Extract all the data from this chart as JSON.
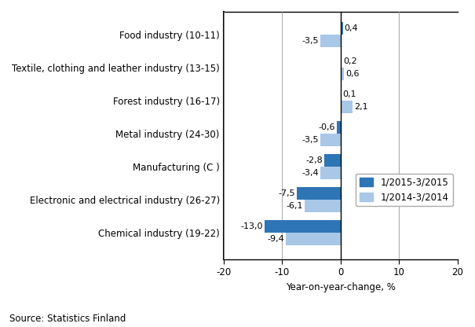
{
  "categories": [
    "Chemical industry (19-22)",
    "Electronic and electrical industry (26-27)",
    "Manufacturing (C )",
    "Metal industry (24-30)",
    "Forest industry (16-17)",
    "Textile, clothing and leather industry (13-15)",
    "Food industry (10-11)"
  ],
  "series": [
    {
      "label": "1/2015-3/2015",
      "color": "#2E75B6",
      "values": [
        -13.0,
        -7.5,
        -2.8,
        -0.6,
        0.1,
        0.2,
        0.4
      ]
    },
    {
      "label": "1/2014-3/2014",
      "color": "#A9C8E8",
      "values": [
        -9.4,
        -6.1,
        -3.4,
        -3.5,
        2.1,
        0.6,
        -3.5
      ]
    }
  ],
  "xlim": [
    -20,
    20
  ],
  "xticks": [
    -20,
    -10,
    0,
    10,
    20
  ],
  "xlabel": "Year-on-year-change, %",
  "source": "Source: Statistics Finland",
  "bar_height": 0.38,
  "grid_color": "#999999",
  "label_fontsize": 8.5,
  "tick_fontsize": 8.5,
  "value_fontsize": 8.0,
  "legend_fontsize": 8.5
}
